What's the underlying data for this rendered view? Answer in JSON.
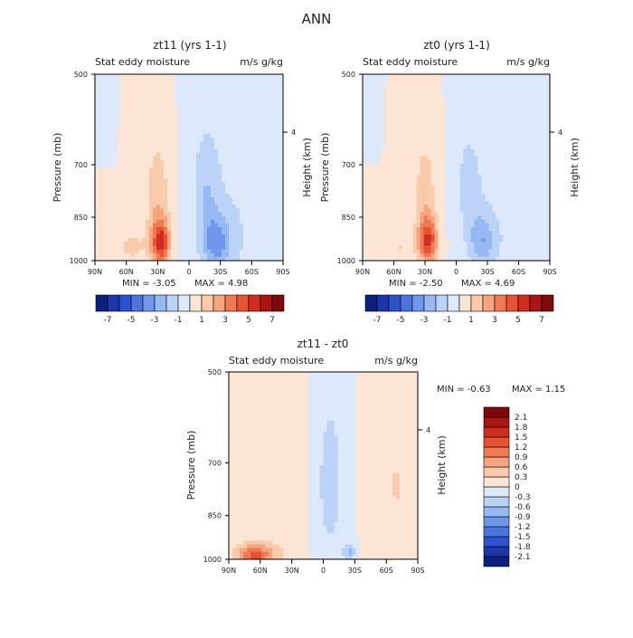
{
  "page": {
    "title": "ANN"
  },
  "colors": {
    "pos": [
      "#fbe6d6",
      "#f9cbab",
      "#f6a57e",
      "#f17a55",
      "#e85233",
      "#cf2d1d",
      "#aa1514",
      "#7d0a0a"
    ],
    "neg": [
      "#dce9fb",
      "#bcd3f8",
      "#97b9f3",
      "#6f97ec",
      "#4c74e0",
      "#2e52cd",
      "#1b35aa",
      "#0b1f7c"
    ],
    "axis": "#000000",
    "white": "#ffffff"
  },
  "chart_data": [
    {
      "type": "heatmap",
      "id": "zt11",
      "title": "zt11 (yrs 1-1)",
      "left_label": "Stat eddy moisture",
      "right_label": "m/s g/kg",
      "ylabel": "Pressure (mb)",
      "y2label": "Height (km)",
      "y_ticks": [
        "500",
        "700",
        "850",
        "1000"
      ],
      "y2_ticks": [
        "4"
      ],
      "x_ticks": [
        "90N",
        "60N",
        "30N",
        "0",
        "30S",
        "60S",
        "90S"
      ],
      "xlim": [
        90,
        -90
      ],
      "ylim": [
        1000,
        500
      ],
      "min_label": "MIN = -3.05",
      "max_label": "MAX = 4.98",
      "min": -3.05,
      "max": 4.98,
      "colorbar": {
        "ticks": [
          "-7",
          "-5",
          "-3",
          "-1",
          "1",
          "3",
          "5",
          "7"
        ],
        "levels": [
          -8,
          -7,
          -6,
          -5,
          -4,
          -3,
          -2,
          -1,
          0,
          1,
          2,
          3,
          4,
          5,
          6,
          7,
          8
        ]
      },
      "features": [
        {
          "lat": 27,
          "p": 935,
          "amp": 4.98,
          "slat": 6,
          "sp": 55
        },
        {
          "lat": 30,
          "p": 790,
          "amp": 1.7,
          "slat": 8,
          "sp": 120
        },
        {
          "lat": 55,
          "p": 950,
          "amp": 1.2,
          "slat": 12,
          "sp": 50
        },
        {
          "lat": -26,
          "p": 935,
          "amp": -3.05,
          "slat": 10,
          "sp": 70
        },
        {
          "lat": -16,
          "p": 760,
          "amp": -1.6,
          "slat": 9,
          "sp": 110
        },
        {
          "lat": -50,
          "p": 860,
          "amp": -0.9,
          "slat": 25,
          "sp": 260
        }
      ]
    },
    {
      "type": "heatmap",
      "id": "zt0",
      "title": "zt0 (yrs 1-1)",
      "left_label": "Stat eddy moisture",
      "right_label": "m/s g/kg",
      "ylabel": "Pressure (mb)",
      "y2label": "Height (km)",
      "y_ticks": [
        "500",
        "700",
        "850",
        "1000"
      ],
      "y2_ticks": [
        "4"
      ],
      "x_ticks": [
        "90N",
        "60N",
        "30N",
        "0",
        "30S",
        "60S",
        "90S"
      ],
      "xlim": [
        90,
        -90
      ],
      "ylim": [
        1000,
        500
      ],
      "min_label": "MIN = -2.50",
      "max_label": "MAX = 4.69",
      "min": -2.5,
      "max": 4.69,
      "colorbar": {
        "ticks": [
          "-7",
          "-5",
          "-3",
          "-1",
          "1",
          "3",
          "5",
          "7"
        ],
        "levels": [
          -8,
          -7,
          -6,
          -5,
          -4,
          -3,
          -2,
          -1,
          0,
          1,
          2,
          3,
          4,
          5,
          6,
          7,
          8
        ]
      },
      "features": [
        {
          "lat": 27,
          "p": 930,
          "amp": 4.69,
          "slat": 6,
          "sp": 55
        },
        {
          "lat": 30,
          "p": 790,
          "amp": 1.6,
          "slat": 8,
          "sp": 120
        },
        {
          "lat": 55,
          "p": 950,
          "amp": 1.0,
          "slat": 12,
          "sp": 50
        },
        {
          "lat": -25,
          "p": 930,
          "amp": -2.5,
          "slat": 9,
          "sp": 65
        },
        {
          "lat": -12,
          "p": 760,
          "amp": -1.4,
          "slat": 9,
          "sp": 110
        },
        {
          "lat": -55,
          "p": 860,
          "amp": -0.8,
          "slat": 25,
          "sp": 260
        }
      ]
    },
    {
      "type": "heatmap",
      "id": "diff",
      "title": "zt11 - zt0",
      "left_label": "Stat eddy moisture",
      "right_label": "m/s g/kg",
      "ylabel": "Pressure (mb)",
      "y2label": "Height (km)",
      "y_ticks": [
        "500",
        "700",
        "850",
        "1000"
      ],
      "y2_ticks": [
        "4"
      ],
      "x_ticks": [
        "90N",
        "60N",
        "30N",
        "0",
        "30S",
        "60S",
        "90S"
      ],
      "xlim": [
        90,
        -90
      ],
      "ylim": [
        1000,
        500
      ],
      "min_label": "MIN = -0.63",
      "max_label": "MAX = 1.15",
      "min": -0.63,
      "max": 1.15,
      "colorbar": {
        "ticks": [
          "2.1",
          "1.8",
          "1.5",
          "1.2",
          "0.9",
          "0.6",
          "0.3",
          "0",
          "-0.3",
          "-0.6",
          "-0.9",
          "-1.2",
          "-1.5",
          "-1.8",
          "-2.1"
        ],
        "levels": [
          -2.4,
          -2.1,
          -1.8,
          -1.5,
          -1.2,
          -0.9,
          -0.6,
          -0.3,
          0,
          0.3,
          0.6,
          0.9,
          1.2,
          1.5,
          1.8,
          2.1,
          2.4
        ]
      },
      "features": [
        {
          "lat": 45,
          "p": 800,
          "amp": 0.25,
          "slat": 40,
          "sp": 300
        },
        {
          "lat": 65,
          "p": 985,
          "amp": 1.15,
          "slat": 12,
          "sp": 25
        },
        {
          "lat": -5,
          "p": 760,
          "amp": -0.5,
          "slat": 14,
          "sp": 230
        },
        {
          "lat": -25,
          "p": 975,
          "amp": -0.63,
          "slat": 4,
          "sp": 25
        },
        {
          "lat": -70,
          "p": 760,
          "amp": 0.3,
          "slat": 18,
          "sp": 260
        }
      ]
    }
  ]
}
